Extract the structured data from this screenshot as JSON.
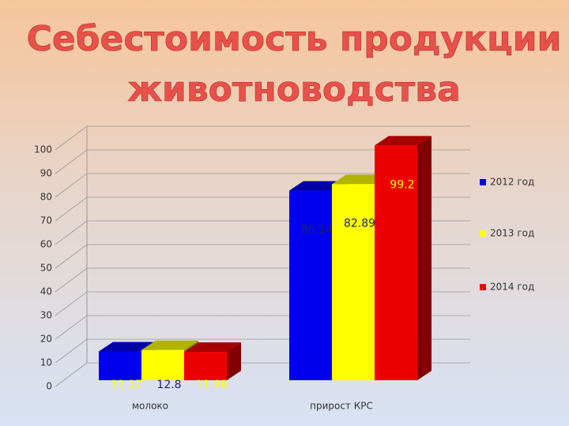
{
  "chart_data": {
    "type": "bar3d",
    "title": "Себестоимость продукции животноводства",
    "categories": [
      "молоко",
      "прирост КРС"
    ],
    "series": [
      {
        "name": "2012 год",
        "color": "#0000ee",
        "values": [
          12.17,
          80.14
        ],
        "value_label_colors": [
          "#ffff00",
          "#1f1f7a"
        ]
      },
      {
        "name": "2013 год",
        "color": "#ffff00",
        "values": [
          12.8,
          82.89
        ],
        "value_label_colors": [
          "#1f1f7a",
          "#1f1f7a"
        ]
      },
      {
        "name": "2014 год",
        "color": "#ee0000",
        "values": [
          11.98,
          99.2
        ],
        "value_label_colors": [
          "#ffff00",
          "#ffff00"
        ]
      }
    ],
    "ylim": [
      0,
      100
    ],
    "yticks": [
      0,
      10,
      20,
      30,
      40,
      50,
      60,
      70,
      80,
      90,
      100
    ],
    "grid": true,
    "legend": "right"
  }
}
